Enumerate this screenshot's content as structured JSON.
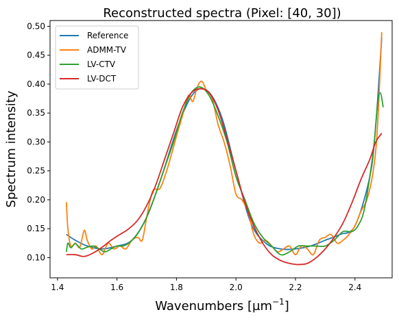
{
  "chart_data": {
    "type": "line",
    "title": "Reconstructed spectra (Pixel: [40, 30])",
    "xlabel": "Wavenumbers [µm",
    "xlabel_sup": "−1",
    "xlabel_tail": "]",
    "ylabel": "Spectrum intensity",
    "xlim": [
      1.375,
      2.525
    ],
    "ylim": [
      0.065,
      0.51
    ],
    "xticks": [
      1.4,
      1.6,
      1.8,
      2.0,
      2.2,
      2.4
    ],
    "xtick_labels": [
      "1.4",
      "1.6",
      "1.8",
      "2.0",
      "2.2",
      "2.4"
    ],
    "yticks": [
      0.1,
      0.15,
      0.2,
      0.25,
      0.3,
      0.35,
      0.4,
      0.45,
      0.5
    ],
    "ytick_labels": [
      "0.10",
      "0.15",
      "0.20",
      "0.25",
      "0.30",
      "0.35",
      "0.40",
      "0.45",
      "0.50"
    ],
    "grid": false,
    "legend_position": "top-left",
    "series": [
      {
        "name": "Reference",
        "color": "#1f77b4",
        "x": [
          1.43,
          1.46,
          1.5,
          1.55,
          1.6,
          1.65,
          1.7,
          1.75,
          1.8,
          1.84,
          1.87,
          1.9,
          1.93,
          1.96,
          2.0,
          2.05,
          2.1,
          2.15,
          2.2,
          2.25,
          2.3,
          2.35,
          2.4,
          2.45,
          2.47,
          2.49
        ],
        "y": [
          0.14,
          0.13,
          0.12,
          0.115,
          0.12,
          0.13,
          0.17,
          0.24,
          0.32,
          0.37,
          0.39,
          0.39,
          0.37,
          0.33,
          0.25,
          0.16,
          0.125,
          0.115,
          0.115,
          0.12,
          0.13,
          0.14,
          0.155,
          0.24,
          0.33,
          0.48
        ]
      },
      {
        "name": "ADMM-TV",
        "color": "#ff7f0e",
        "x": [
          1.43,
          1.435,
          1.445,
          1.46,
          1.475,
          1.49,
          1.5,
          1.515,
          1.53,
          1.55,
          1.57,
          1.59,
          1.61,
          1.63,
          1.65,
          1.67,
          1.685,
          1.7,
          1.72,
          1.745,
          1.77,
          1.8,
          1.82,
          1.84,
          1.855,
          1.87,
          1.885,
          1.9,
          1.92,
          1.94,
          1.96,
          1.98,
          2.0,
          2.02,
          2.04,
          2.06,
          2.08,
          2.1,
          2.12,
          2.14,
          2.16,
          2.18,
          2.2,
          2.22,
          2.24,
          2.26,
          2.28,
          2.3,
          2.32,
          2.34,
          2.36,
          2.38,
          2.4,
          2.42,
          2.44,
          2.46,
          2.475,
          2.49
        ],
        "y": [
          0.196,
          0.15,
          0.12,
          0.125,
          0.118,
          0.147,
          0.13,
          0.115,
          0.12,
          0.105,
          0.125,
          0.115,
          0.12,
          0.115,
          0.13,
          0.135,
          0.13,
          0.17,
          0.215,
          0.22,
          0.255,
          0.31,
          0.345,
          0.38,
          0.37,
          0.395,
          0.405,
          0.39,
          0.375,
          0.33,
          0.3,
          0.26,
          0.21,
          0.2,
          0.18,
          0.14,
          0.125,
          0.13,
          0.12,
          0.11,
          0.115,
          0.12,
          0.105,
          0.12,
          0.115,
          0.105,
          0.13,
          0.135,
          0.14,
          0.125,
          0.13,
          0.14,
          0.155,
          0.18,
          0.2,
          0.245,
          0.32,
          0.49
        ]
      },
      {
        "name": "LV-CTV",
        "color": "#2ca02c",
        "x": [
          1.43,
          1.435,
          1.445,
          1.46,
          1.48,
          1.5,
          1.52,
          1.54,
          1.56,
          1.58,
          1.6,
          1.62,
          1.64,
          1.66,
          1.68,
          1.7,
          1.73,
          1.76,
          1.79,
          1.82,
          1.85,
          1.88,
          1.91,
          1.94,
          1.97,
          2.0,
          2.03,
          2.06,
          2.09,
          2.12,
          2.15,
          2.18,
          2.21,
          2.24,
          2.27,
          2.3,
          2.33,
          2.36,
          2.39,
          2.41,
          2.43,
          2.45,
          2.465,
          2.475,
          2.485,
          2.495
        ],
        "y": [
          0.11,
          0.125,
          0.117,
          0.124,
          0.115,
          0.118,
          0.12,
          0.115,
          0.11,
          0.115,
          0.12,
          0.12,
          0.125,
          0.135,
          0.15,
          0.17,
          0.21,
          0.255,
          0.3,
          0.35,
          0.385,
          0.395,
          0.38,
          0.345,
          0.3,
          0.24,
          0.2,
          0.16,
          0.135,
          0.12,
          0.105,
          0.11,
          0.12,
          0.12,
          0.12,
          0.12,
          0.13,
          0.145,
          0.145,
          0.155,
          0.18,
          0.24,
          0.3,
          0.36,
          0.385,
          0.36
        ]
      },
      {
        "name": "LV-DCT",
        "color": "#d62728",
        "x": [
          1.43,
          1.46,
          1.49,
          1.52,
          1.55,
          1.58,
          1.61,
          1.64,
          1.67,
          1.7,
          1.73,
          1.76,
          1.79,
          1.82,
          1.85,
          1.88,
          1.91,
          1.94,
          1.97,
          2.0,
          2.03,
          2.06,
          2.09,
          2.12,
          2.15,
          2.18,
          2.21,
          2.24,
          2.27,
          2.3,
          2.33,
          2.36,
          2.39,
          2.42,
          2.45,
          2.47,
          2.49
        ],
        "y": [
          0.105,
          0.105,
          0.102,
          0.108,
          0.118,
          0.13,
          0.14,
          0.15,
          0.165,
          0.19,
          0.225,
          0.27,
          0.315,
          0.36,
          0.385,
          0.392,
          0.385,
          0.355,
          0.305,
          0.25,
          0.195,
          0.155,
          0.125,
          0.105,
          0.095,
          0.09,
          0.088,
          0.09,
          0.1,
          0.115,
          0.135,
          0.16,
          0.195,
          0.235,
          0.27,
          0.3,
          0.315
        ]
      }
    ]
  }
}
